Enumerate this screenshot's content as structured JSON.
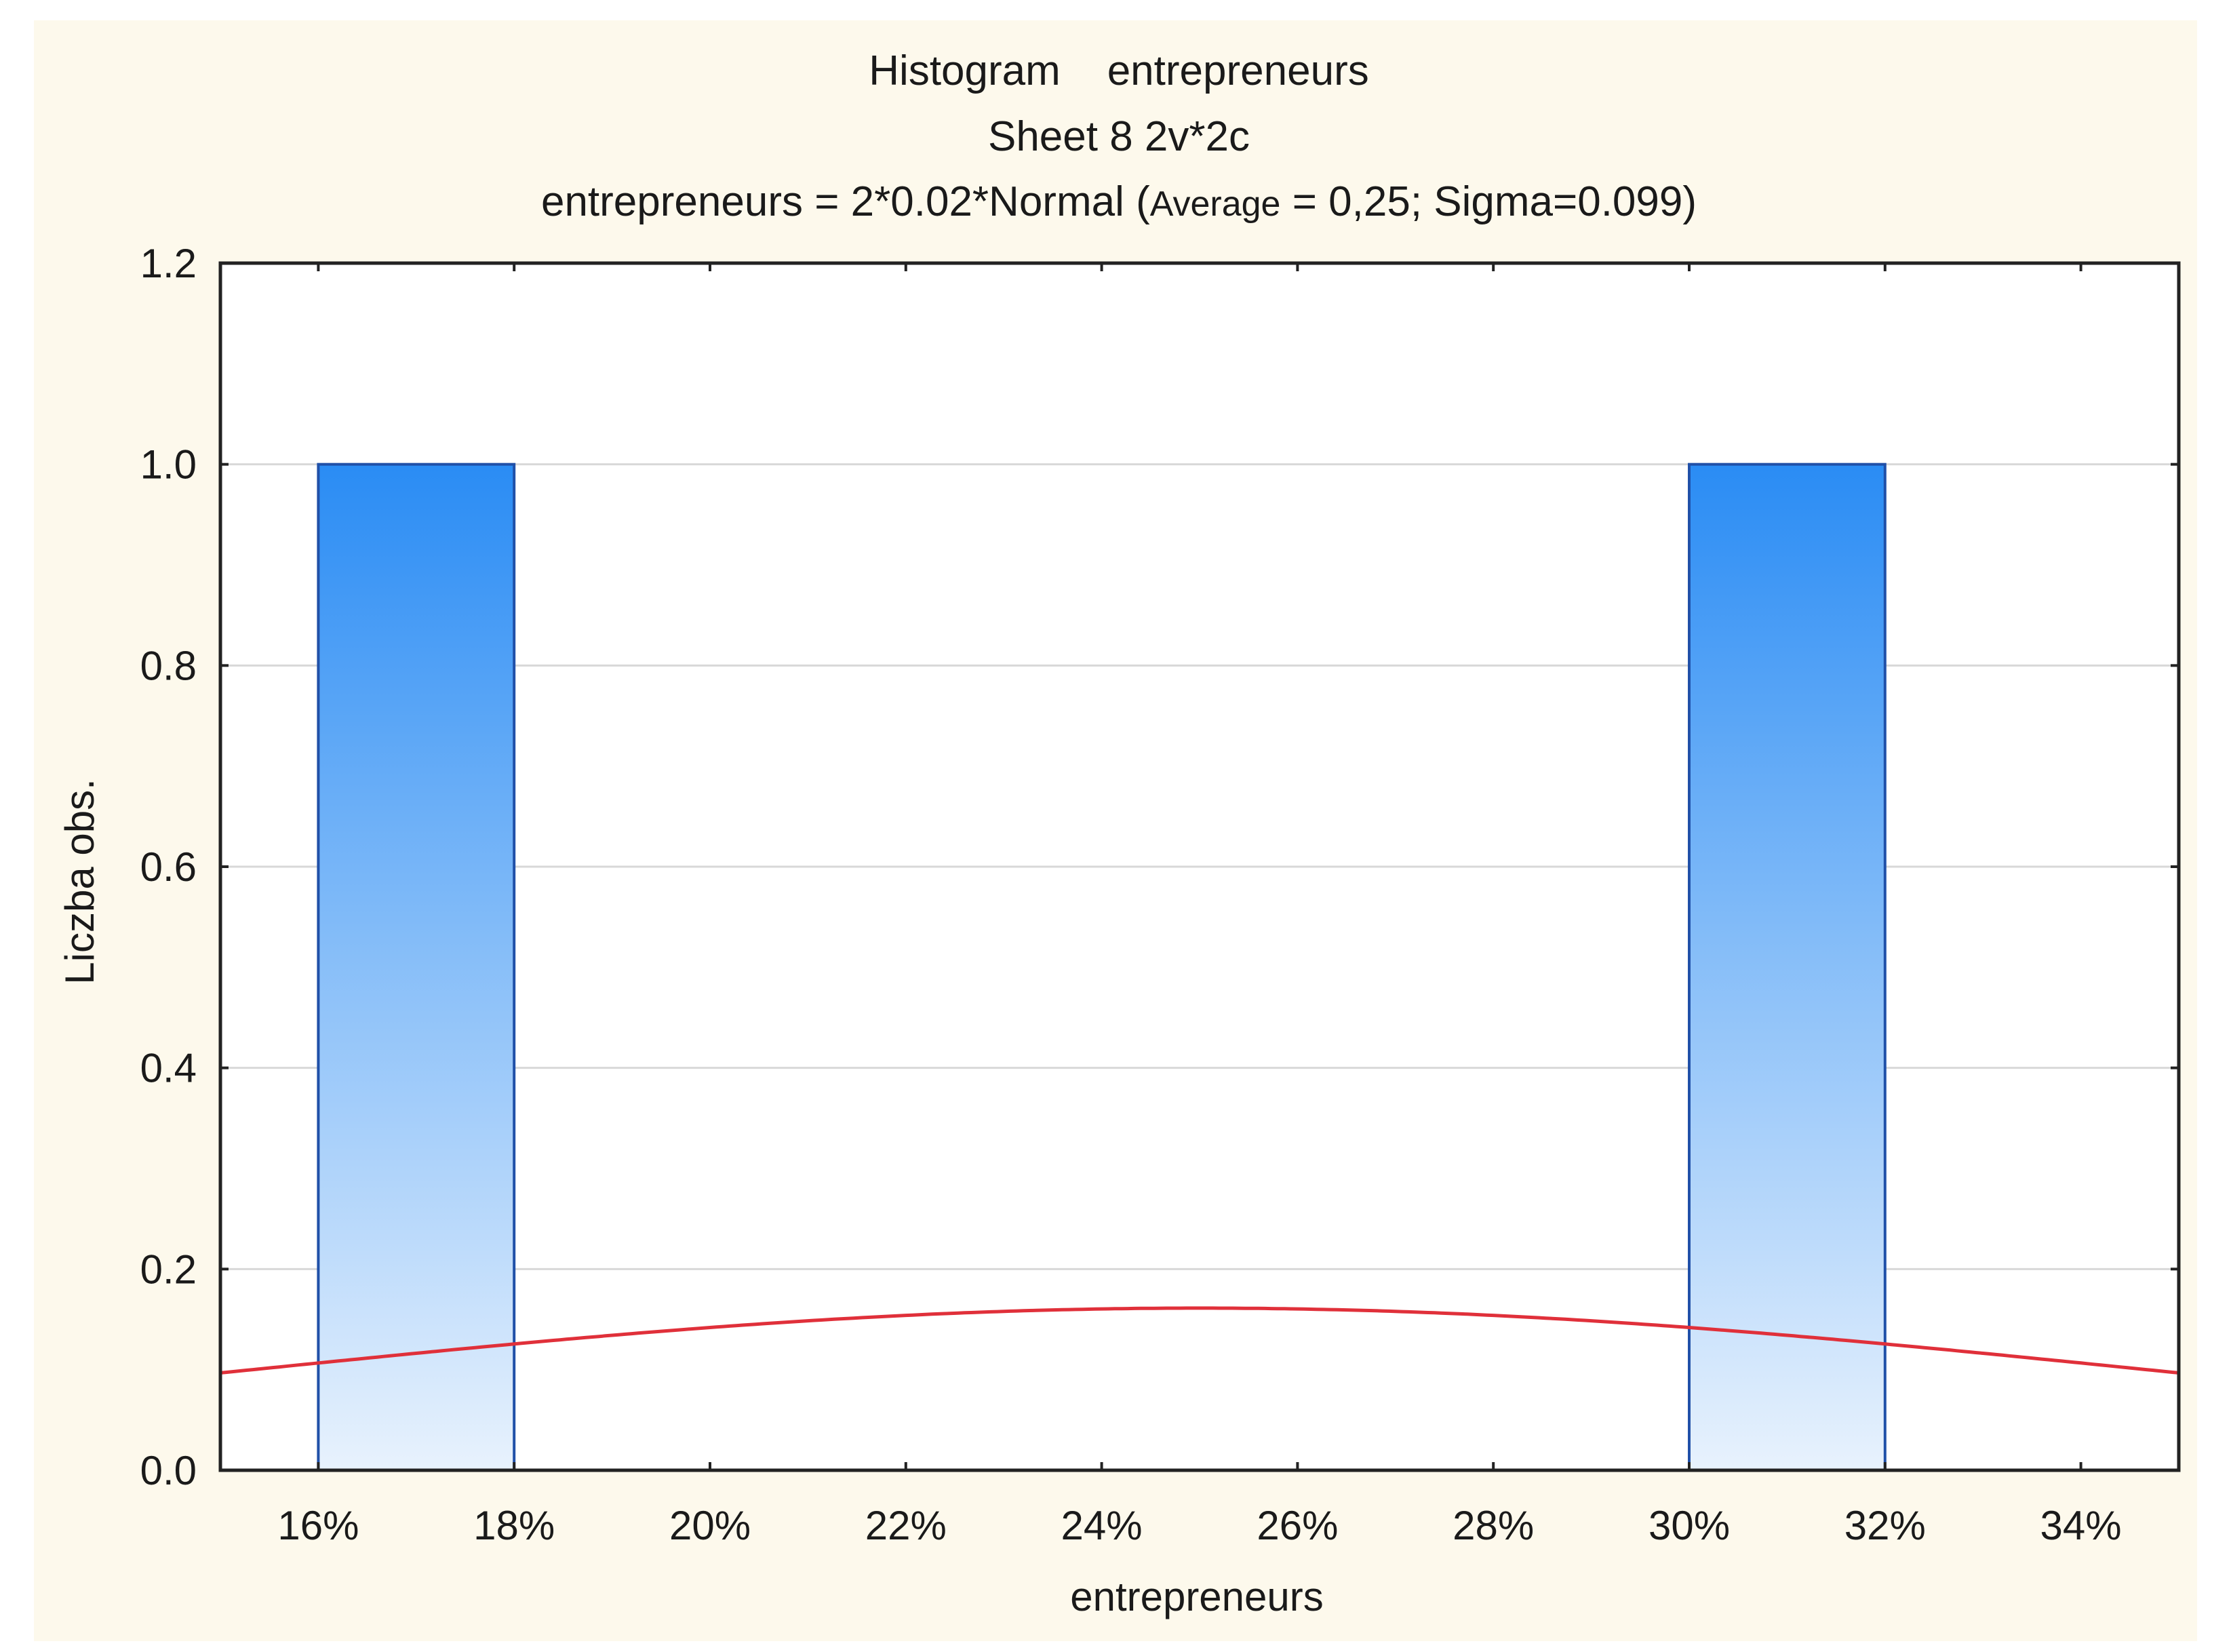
{
  "chart_data": {
    "type": "bar",
    "subtype": "histogram",
    "title": "Histogram    entrepreneurs",
    "subtitle": "Sheet 8 2v*2c",
    "fit_label": {
      "prefix": "entrepreneurs = 2*0.02*Normal (",
      "average_label": "Average",
      "rest": " = 0,25; Sigma=0.099)"
    },
    "xlabel": "entrepreneurs",
    "ylabel": "Liczba obs.",
    "xlim": [
      0.15,
      0.35
    ],
    "ylim": [
      0,
      1.2
    ],
    "x_ticks": [
      0.16,
      0.18,
      0.2,
      0.22,
      0.24,
      0.26,
      0.28,
      0.3,
      0.32,
      0.34
    ],
    "x_tick_labels": [
      "16%",
      "18%",
      "20%",
      "22%",
      "24%",
      "26%",
      "28%",
      "30%",
      "32%",
      "34%"
    ],
    "y_ticks": [
      0.0,
      0.2,
      0.4,
      0.6,
      0.8,
      1.0,
      1.2
    ],
    "y_tick_labels": [
      "0.0",
      "0.2",
      "0.4",
      "0.6",
      "0.8",
      "1.0",
      "1.2"
    ],
    "bins": [
      {
        "start": 0.16,
        "end": 0.18,
        "count": 1
      },
      {
        "start": 0.3,
        "end": 0.32,
        "count": 1
      }
    ],
    "normal_fit": {
      "n": 2,
      "bin_width": 0.02,
      "mean": 0.25,
      "sigma": 0.099
    },
    "grid": true,
    "colors": {
      "background": "#fdf9ec",
      "plot_background": "#ffffff",
      "bar_top": "#2a8cf4",
      "bar_bottom": "#e8f2fd",
      "bar_edge": "#2050a8",
      "curve": "#e0303a",
      "grid": "#d8d8d8",
      "axis": "#222222"
    }
  }
}
